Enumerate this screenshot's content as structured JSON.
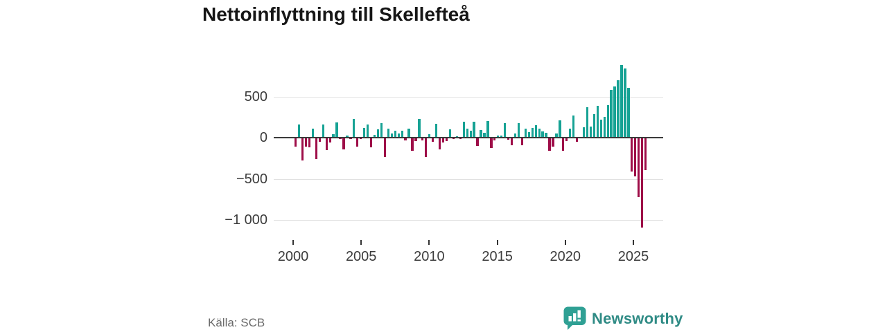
{
  "title": "Nettoinflyttning till Skellefteå",
  "source": "Källa: SCB",
  "branding": {
    "name": "Newsworthy",
    "icon": "newsworthy-bar-chart-bubble-icon"
  },
  "colors": {
    "positive_bar": "#16a294",
    "negative_bar": "#9e0d48",
    "grid": "#e1e1e1",
    "zero_line": "#3a3a3a",
    "axis_text": "#3c3c3c",
    "title_text": "#161616",
    "source_text": "#6b6b6b",
    "brand_teal": "#2f8b85",
    "brand_icon_teal": "#2fa094"
  },
  "chart_data": {
    "type": "bar",
    "title": "Nettoinflyttning till Skellefteå",
    "xlabel": "",
    "ylabel": "",
    "x_unit": "quarter",
    "start": "2000-Q1",
    "end": "2025-Q3",
    "grid": "horizontal",
    "legend_position": "none",
    "xticks": [
      "2000",
      "2005",
      "2010",
      "2015",
      "2020",
      "2025"
    ],
    "yticks": [
      500,
      0,
      -500,
      -1000
    ],
    "ytick_labels": [
      "500",
      "0",
      "−500",
      "−1 000"
    ],
    "ylim": [
      -1150,
      950
    ],
    "values": [
      -100,
      150,
      -270,
      -100,
      -110,
      100,
      -250,
      -40,
      150,
      -140,
      -50,
      35,
      175,
      -10,
      -135,
      20,
      -10,
      215,
      -100,
      -10,
      110,
      150,
      -110,
      25,
      90,
      165,
      -230,
      105,
      40,
      80,
      40,
      80,
      -25,
      100,
      -150,
      -35,
      215,
      -25,
      -230,
      35,
      -40,
      160,
      -130,
      -50,
      -30,
      90,
      -10,
      10,
      -10,
      185,
      100,
      75,
      185,
      -90,
      85,
      55,
      195,
      -120,
      -25,
      15,
      15,
      165,
      -15,
      -80,
      40,
      165,
      -85,
      100,
      60,
      110,
      140,
      100,
      65,
      50,
      -150,
      -100,
      40,
      200,
      -150,
      -35,
      100,
      260,
      -40,
      0,
      115,
      365,
      125,
      275,
      375,
      210,
      240,
      390,
      575,
      610,
      690,
      875,
      835,
      600,
      -400,
      -465,
      -715,
      -1080,
      -385
    ]
  }
}
